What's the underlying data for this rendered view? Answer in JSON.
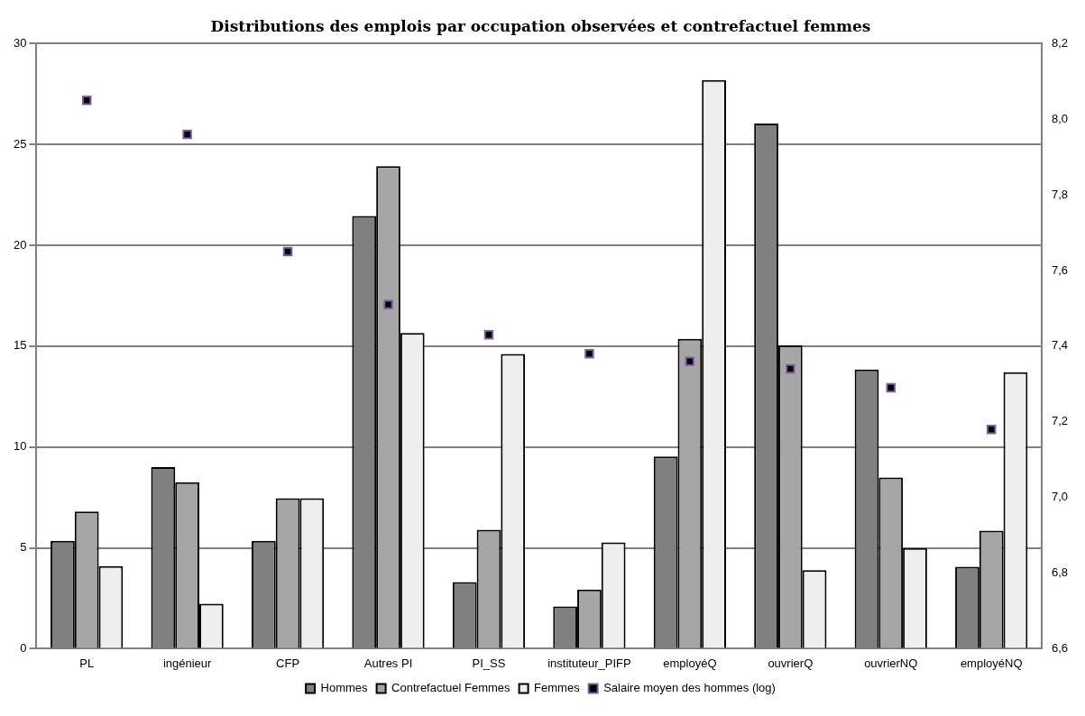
{
  "chart_data": {
    "type": "bar",
    "title": "Distributions des emplois par occupation observées et contrefactuel femmes",
    "categories": [
      "PL",
      "ingénieur",
      "CFP",
      "Autres PI",
      "PI_SS",
      "instituteur_PIFP",
      "employéQ",
      "ouvrierQ",
      "ouvrierNQ",
      "employéNQ"
    ],
    "series": [
      {
        "name": "Hommes",
        "color": "#808080",
        "values": [
          5.35,
          9.0,
          5.35,
          21.46,
          3.3,
          2.1,
          9.53,
          26.04,
          13.84,
          4.06
        ]
      },
      {
        "name": "Contrefactuel Femmes",
        "color": "#a6a6a6",
        "values": [
          6.8,
          8.26,
          7.46,
          23.93,
          5.9,
          2.94,
          15.36,
          15.04,
          8.49,
          5.85
        ]
      },
      {
        "name": "Femmes",
        "color": "#eeeeee",
        "values": [
          4.1,
          2.23,
          7.46,
          15.66,
          14.62,
          5.27,
          28.2,
          3.9,
          4.99,
          13.71
        ]
      },
      {
        "name": "Salaire moyen des hommes (log)",
        "type": "scatter",
        "axis": "y2",
        "color": "#000000",
        "values": [
          8.05,
          7.96,
          7.65,
          7.51,
          7.43,
          7.38,
          7.36,
          7.34,
          7.29,
          7.18
        ]
      }
    ],
    "ylim": [
      0,
      30
    ],
    "yticks": [
      0,
      5,
      10,
      15,
      20,
      25,
      30
    ],
    "y2lim": [
      6.6,
      8.2
    ],
    "y2ticks": [
      {
        "value": 6.6,
        "label": "6,6"
      },
      {
        "value": 6.8,
        "label": "6,8"
      },
      {
        "value": 7.0,
        "label": "7,0"
      },
      {
        "value": 7.2,
        "label": "7,2"
      },
      {
        "value": 7.4,
        "label": "7,4"
      },
      {
        "value": 7.6,
        "label": "7,6"
      },
      {
        "value": 7.8,
        "label": "7,8"
      },
      {
        "value": 8.0,
        "label": "8,0"
      },
      {
        "value": 8.2,
        "label": "8,2"
      }
    ],
    "grid": "y",
    "legend": "bottom",
    "marker": "square"
  }
}
